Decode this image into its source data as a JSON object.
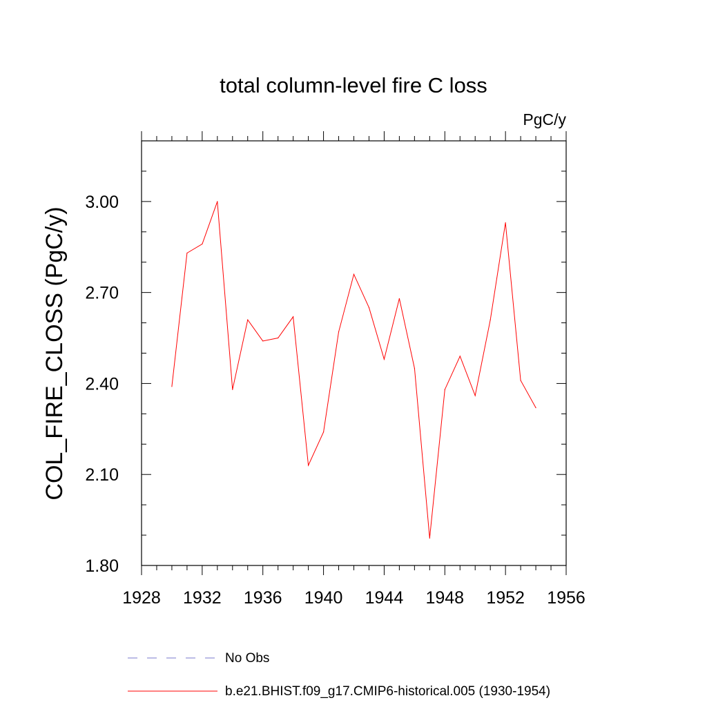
{
  "chart_data": {
    "type": "line",
    "title": "total column-level fire C loss",
    "units_label": "PgC/y",
    "ylabel": "COL_FIRE_CLOSS  (PgC/y)",
    "xlabel": "",
    "xlim": [
      1928,
      1956
    ],
    "ylim": [
      1.8,
      3.2
    ],
    "x_major_ticks": [
      1928,
      1932,
      1936,
      1940,
      1944,
      1948,
      1952,
      1956
    ],
    "x_tick_labels": [
      "1928",
      "1932",
      "1936",
      "1940",
      "1944",
      "1948",
      "1952",
      "1956"
    ],
    "y_major_ticks": [
      1.8,
      2.1,
      2.4,
      2.7,
      3.0
    ],
    "y_tick_labels": [
      "1.80",
      "2.10",
      "2.40",
      "2.70",
      "3.00"
    ],
    "grid": false,
    "series": [
      {
        "name": "b.e21.BHIST.f09_g17.CMIP6-historical.005 (1930-1954)",
        "color": "#ff0000",
        "x": [
          1930,
          1931,
          1932,
          1933,
          1934,
          1935,
          1936,
          1937,
          1938,
          1939,
          1940,
          1941,
          1942,
          1943,
          1944,
          1945,
          1946,
          1947,
          1948,
          1949,
          1950,
          1951,
          1952,
          1953,
          1954
        ],
        "y": [
          2.39,
          2.83,
          2.86,
          3.0,
          2.38,
          2.61,
          2.54,
          2.55,
          2.62,
          2.13,
          2.24,
          2.57,
          2.76,
          2.65,
          2.48,
          2.68,
          2.45,
          1.89,
          2.38,
          2.49,
          2.36,
          2.61,
          2.93,
          2.41,
          2.32
        ]
      }
    ],
    "legend": [
      {
        "label": "No Obs",
        "color": "#7777cc",
        "style": "dashed"
      },
      {
        "label": "b.e21.BHIST.f09_g17.CMIP6-historical.005 (1930-1954)",
        "color": "#ff0000",
        "style": "solid"
      }
    ],
    "legend_placement": "bottom"
  }
}
